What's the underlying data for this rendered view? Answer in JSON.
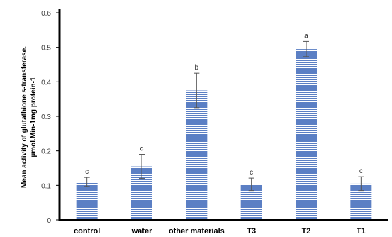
{
  "chart_data": {
    "type": "bar",
    "title": "",
    "xlabel": "",
    "ylabel_lines": [
      "Mean activity of glutathione s-transferase.",
      "µmol.Min-1mg protein-1"
    ],
    "categories": [
      "control",
      "water",
      "other materials",
      "T3",
      "T2",
      "T1"
    ],
    "values": [
      0.11,
      0.155,
      0.375,
      0.103,
      0.495,
      0.105
    ],
    "errors": [
      0.013,
      0.035,
      0.05,
      0.018,
      0.022,
      0.02
    ],
    "significance": [
      "c",
      "c",
      "b",
      "c",
      "a",
      "c"
    ],
    "ylim": [
      0,
      0.6
    ],
    "yticks": [
      0,
      0.1,
      0.2,
      0.3,
      0.4,
      0.5,
      0.6
    ],
    "ytick_labels": [
      "0",
      "0.1",
      "0.2",
      "0.3",
      "0.4",
      "0.5",
      "0.6"
    ],
    "grid": false,
    "legend": "none",
    "bar_color": "#5b7fc4",
    "bar_stripe_color": "#ffffff",
    "axis_color": "#000000",
    "error_bar_color": "#555555"
  }
}
